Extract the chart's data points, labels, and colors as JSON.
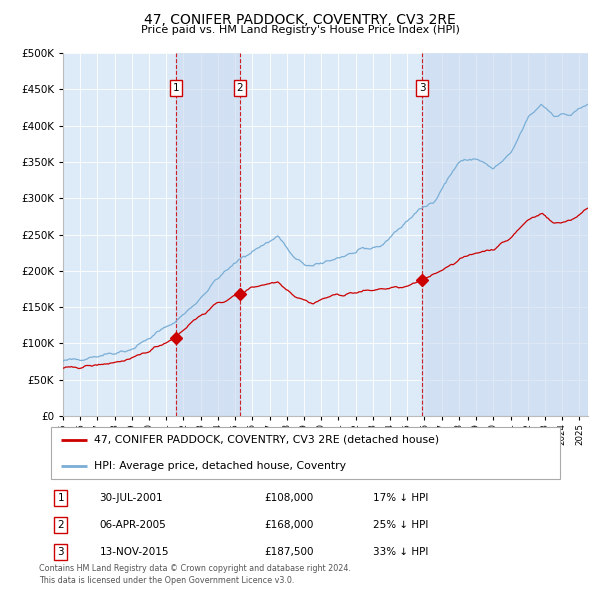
{
  "title": "47, CONIFER PADDOCK, COVENTRY, CV3 2RE",
  "subtitle": "Price paid vs. HM Land Registry's House Price Index (HPI)",
  "sale_label": "47, CONIFER PADDOCK, COVENTRY, CV3 2RE (detached house)",
  "hpi_label": "HPI: Average price, detached house, Coventry",
  "sale_color": "#cc0000",
  "hpi_color": "#7aaed6",
  "background_color": "#ddeaf7",
  "transactions": [
    {
      "num": 1,
      "date": "30-JUL-2001",
      "price": 108000,
      "pct": "17%",
      "dir": "↓",
      "year": 2001.58
    },
    {
      "num": 2,
      "date": "06-APR-2005",
      "price": 168000,
      "pct": "25%",
      "dir": "↓",
      "year": 2005.27
    },
    {
      "num": 3,
      "date": "13-NOV-2015",
      "price": 187500,
      "pct": "33%",
      "dir": "↓",
      "year": 2015.87
    }
  ],
  "footer1": "Contains HM Land Registry data © Crown copyright and database right 2024.",
  "footer2": "This data is licensed under the Open Government Licence v3.0.",
  "ylim": [
    0,
    500000
  ],
  "yticks": [
    0,
    50000,
    100000,
    150000,
    200000,
    250000,
    300000,
    350000,
    400000,
    450000,
    500000
  ],
  "xlim_start": 1995.0,
  "xlim_end": 2025.5,
  "hpi_keypoints_x": [
    1995.0,
    1997.0,
    1999.0,
    2001.5,
    2002.5,
    2004.0,
    2005.5,
    2007.5,
    2008.5,
    2009.5,
    2010.5,
    2012.0,
    2013.5,
    2015.5,
    2016.5,
    2018.0,
    2019.0,
    2020.0,
    2021.0,
    2022.0,
    2022.8,
    2023.5,
    2024.5,
    2025.5
  ],
  "hpi_keypoints_y": [
    75000,
    83000,
    92000,
    130000,
    150000,
    190000,
    220000,
    248000,
    215000,
    205000,
    215000,
    225000,
    235000,
    280000,
    295000,
    350000,
    355000,
    340000,
    360000,
    410000,
    430000,
    415000,
    415000,
    430000
  ],
  "sale_keypoints_x": [
    1995.0,
    1997.0,
    1999.0,
    2001.5,
    2002.5,
    2004.0,
    2005.3,
    2006.0,
    2007.5,
    2008.5,
    2009.5,
    2010.5,
    2012.0,
    2013.5,
    2015.0,
    2015.9,
    2016.5,
    2018.0,
    2019.0,
    2020.0,
    2021.0,
    2022.0,
    2022.8,
    2023.5,
    2024.5,
    2025.5
  ],
  "sale_keypoints_y": [
    65000,
    70000,
    78000,
    108000,
    130000,
    155000,
    168000,
    178000,
    185000,
    165000,
    155000,
    165000,
    170000,
    175000,
    178000,
    187500,
    195000,
    215000,
    225000,
    230000,
    245000,
    270000,
    280000,
    265000,
    270000,
    285000
  ]
}
